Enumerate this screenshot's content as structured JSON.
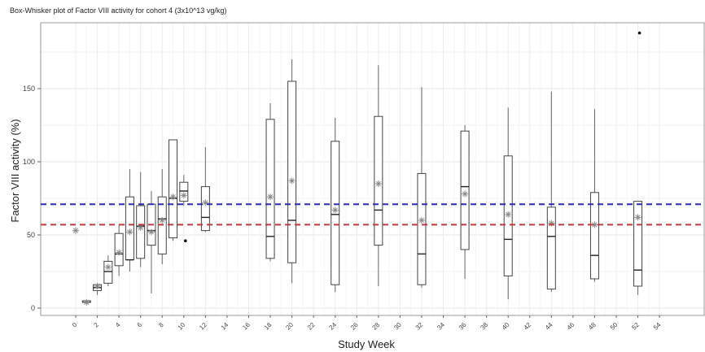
{
  "chart_data": {
    "type": "box",
    "title": "Box-Whisker plot of Factor VIII activity for cohort 4 (3x10^13 vg/kg)",
    "xlabel": "Study Week",
    "ylabel": "Factor VIII activity (%)",
    "ylim": [
      -5,
      195
    ],
    "yticks": [
      0,
      50,
      100,
      150
    ],
    "xticks": [
      "0",
      "2",
      "4",
      "6",
      "8",
      "10",
      "12",
      "14",
      "16",
      "18",
      "20",
      "22",
      "24",
      "26",
      "28",
      "30",
      "32",
      "34",
      "36",
      "38",
      "40",
      "42",
      "44",
      "46",
      "48",
      "50",
      "52",
      "54"
    ],
    "grid": true,
    "reference_lines": [
      {
        "value": 71,
        "color": "#2b2bb0",
        "style": "dashed"
      },
      {
        "value": 57,
        "color": "#c0393b",
        "style": "dashed"
      }
    ],
    "boxes": [
      {
        "week": 0,
        "mean": 53
      },
      {
        "week": 1,
        "min": 4,
        "q1": 4,
        "median": 4,
        "q3": 5,
        "max": 5,
        "mean": 4
      },
      {
        "week": 2,
        "min": 9,
        "q1": 12,
        "median": 14,
        "q3": 16,
        "max": 17,
        "mean": 15
      },
      {
        "week": 3,
        "min": 15,
        "q1": 17,
        "median": 25,
        "q3": 32,
        "max": 36,
        "mean": 28
      },
      {
        "week": 4,
        "min": 22,
        "q1": 29,
        "median": 37,
        "q3": 51,
        "max": 57,
        "mean": 38
      },
      {
        "week": 5,
        "min": 25,
        "q1": 33,
        "median": 33,
        "q3": 76,
        "max": 95,
        "mean": 52
      },
      {
        "week": 6,
        "min": 28,
        "q1": 34,
        "median": 56,
        "q3": 70,
        "max": 93,
        "mean": 55
      },
      {
        "week": 7,
        "min": 10,
        "q1": 43,
        "median": 53,
        "q3": 71,
        "max": 80,
        "mean": 52
      },
      {
        "week": 8,
        "min": 30,
        "q1": 37,
        "median": 61,
        "q3": 76,
        "max": 95,
        "mean": 60
      },
      {
        "week": 9,
        "min": 46,
        "q1": 48,
        "median": 75,
        "q3": 115,
        "max": 115,
        "mean": 76
      },
      {
        "week": 10,
        "min": 70,
        "q1": 73,
        "median": 80,
        "q3": 86,
        "max": 91,
        "mean": 77,
        "outliers": [
          46
        ]
      },
      {
        "week": 12,
        "min": 52,
        "q1": 53,
        "median": 62,
        "q3": 83,
        "max": 110,
        "mean": 72
      },
      {
        "week": 18,
        "min": 32,
        "q1": 34,
        "median": 49,
        "q3": 129,
        "max": 140,
        "mean": 76
      },
      {
        "week": 20,
        "min": 17,
        "q1": 31,
        "median": 60,
        "q3": 155,
        "max": 170,
        "mean": 87
      },
      {
        "week": 24,
        "min": 11,
        "q1": 16,
        "median": 64,
        "q3": 114,
        "max": 130,
        "mean": 67
      },
      {
        "week": 28,
        "min": 15,
        "q1": 43,
        "median": 67,
        "q3": 131,
        "max": 166,
        "mean": 85
      },
      {
        "week": 32,
        "min": 14,
        "q1": 16,
        "median": 37,
        "q3": 92,
        "max": 151,
        "mean": 60
      },
      {
        "week": 36,
        "min": 20,
        "q1": 40,
        "median": 83,
        "q3": 121,
        "max": 125,
        "mean": 78
      },
      {
        "week": 40,
        "min": 6,
        "q1": 22,
        "median": 47,
        "q3": 104,
        "max": 137,
        "mean": 64
      },
      {
        "week": 44,
        "min": 11,
        "q1": 13,
        "median": 49,
        "q3": 69,
        "max": 148,
        "mean": 58
      },
      {
        "week": 48,
        "min": 18,
        "q1": 20,
        "median": 36,
        "q3": 79,
        "max": 136,
        "mean": 57
      },
      {
        "week": 52,
        "min": 9,
        "q1": 15,
        "median": 26,
        "q3": 73,
        "max": 73,
        "mean": 62,
        "outliers": [
          188
        ]
      }
    ]
  }
}
